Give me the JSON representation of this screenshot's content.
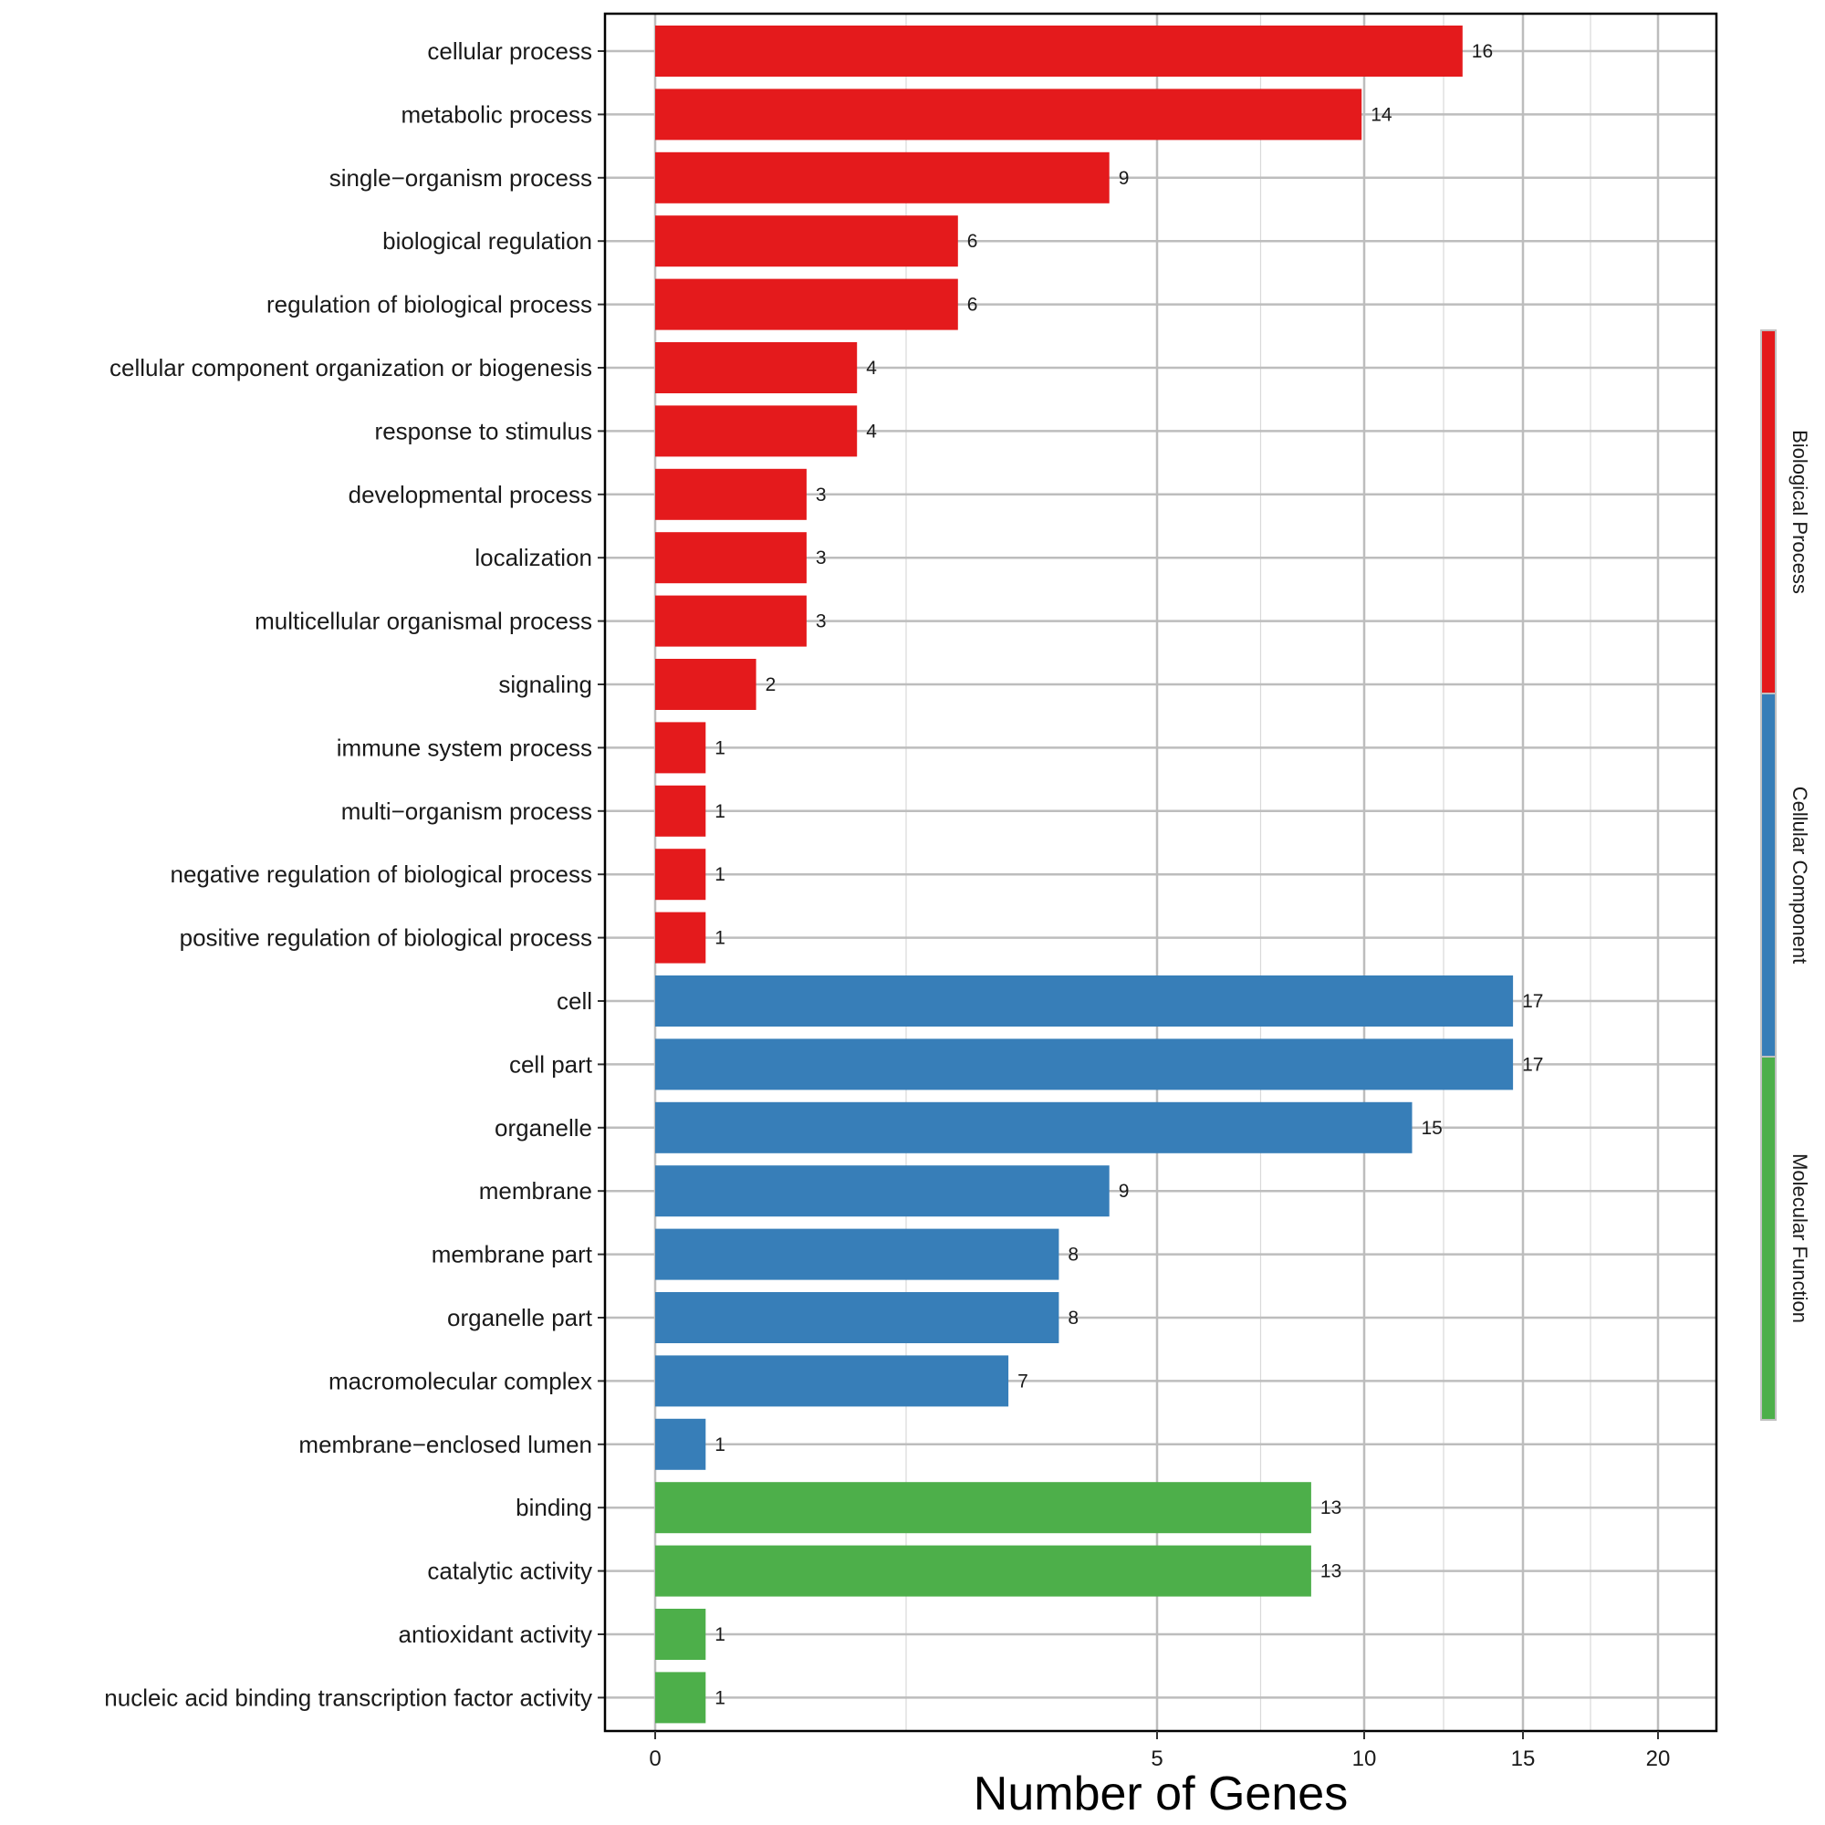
{
  "chart_data": {
    "type": "bar",
    "orientation": "horizontal",
    "xlabel": "Number of Genes",
    "ylabel": "",
    "grid": true,
    "legend_placement": "right",
    "ticks": [
      {
        "value": 0,
        "label": "0"
      },
      {
        "value": 5,
        "label": "5"
      },
      {
        "value": 10,
        "label": "10"
      },
      {
        "value": 15,
        "label": "15"
      },
      {
        "value": 20,
        "label": "20"
      }
    ],
    "colors": {
      "Biological Process": "#e41a1c",
      "Cellular Component": "#377eb8",
      "Molecular Function": "#4daf4a"
    },
    "groups": [
      "Biological Process",
      "Cellular Component",
      "Molecular Function"
    ],
    "categories": [
      {
        "label": "cellular process",
        "value": 16,
        "group": "Biological Process"
      },
      {
        "label": "metabolic process",
        "value": 14,
        "group": "Biological Process"
      },
      {
        "label": "single−organism process",
        "value": 9,
        "group": "Biological Process"
      },
      {
        "label": "biological regulation",
        "value": 6,
        "group": "Biological Process"
      },
      {
        "label": "regulation of biological process",
        "value": 6,
        "group": "Biological Process"
      },
      {
        "label": "cellular component organization or biogenesis",
        "value": 4,
        "group": "Biological Process"
      },
      {
        "label": "response to stimulus",
        "value": 4,
        "group": "Biological Process"
      },
      {
        "label": "developmental process",
        "value": 3,
        "group": "Biological Process"
      },
      {
        "label": "localization",
        "value": 3,
        "group": "Biological Process"
      },
      {
        "label": "multicellular organismal process",
        "value": 3,
        "group": "Biological Process"
      },
      {
        "label": "signaling",
        "value": 2,
        "group": "Biological Process"
      },
      {
        "label": "immune system process",
        "value": 1,
        "group": "Biological Process"
      },
      {
        "label": "multi−organism process",
        "value": 1,
        "group": "Biological Process"
      },
      {
        "label": "negative regulation of biological process",
        "value": 1,
        "group": "Biological Process"
      },
      {
        "label": "positive regulation of biological process",
        "value": 1,
        "group": "Biological Process"
      },
      {
        "label": "cell",
        "value": 17,
        "group": "Cellular Component"
      },
      {
        "label": "cell part",
        "value": 17,
        "group": "Cellular Component"
      },
      {
        "label": "organelle",
        "value": 15,
        "group": "Cellular Component"
      },
      {
        "label": "membrane",
        "value": 9,
        "group": "Cellular Component"
      },
      {
        "label": "membrane part",
        "value": 8,
        "group": "Cellular Component"
      },
      {
        "label": "organelle part",
        "value": 8,
        "group": "Cellular Component"
      },
      {
        "label": "macromolecular complex",
        "value": 7,
        "group": "Cellular Component"
      },
      {
        "label": "membrane−enclosed lumen",
        "value": 1,
        "group": "Cellular Component"
      },
      {
        "label": "binding",
        "value": 13,
        "group": "Molecular Function"
      },
      {
        "label": "catalytic activity",
        "value": 13,
        "group": "Molecular Function"
      },
      {
        "label": "antioxidant activity",
        "value": 1,
        "group": "Molecular Function"
      },
      {
        "label": "nucleic acid binding transcription factor activity",
        "value": 1,
        "group": "Molecular Function"
      }
    ]
  }
}
